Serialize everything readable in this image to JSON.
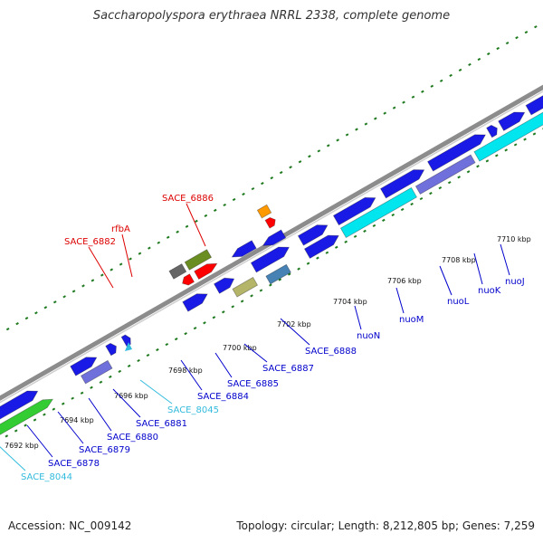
{
  "title": "Saccharopolyspora erythraea NRRL 2338, complete genome",
  "accession_text": "Accession: NC_009142",
  "summary_text": "Topology: circular; Length: 8,212,805 bp; Genes: 7,259",
  "colors": {
    "backbone": "#8c8c8c",
    "tick_dots": "#1f7a1f",
    "cds_forward": "#1a1ae6",
    "cds_reverse": "#1a1ae6",
    "rrna_like": "#00e5ee",
    "green_feature": "#33cc33",
    "purple_feature": "#7070dd",
    "olive_feature": "#6b8e23",
    "khaki_feature": "#b5b56a",
    "steel_feature": "#4682b4",
    "red_feature": "#ff0000",
    "orange_feature": "#ff9900",
    "gray_feature": "#666666",
    "label_blue": "#0000cc",
    "label_red": "#dd0000",
    "label_cyan": "#33bbdd"
  },
  "map": {
    "tick_labels": [
      "7692 kbp",
      "7694 kbp",
      "7696 kbp",
      "7698 kbp",
      "7700 kbp",
      "7702 kbp",
      "7704 kbp",
      "7706 kbp",
      "7708 kbp",
      "7710 kbp"
    ],
    "gene_labels": [
      {
        "text": "SACE_6886",
        "color_key": "label_red"
      },
      {
        "text": "rfbA",
        "color_key": "label_red"
      },
      {
        "text": "SACE_6882",
        "color_key": "label_red"
      },
      {
        "text": "SACE_8044",
        "color_key": "label_cyan"
      },
      {
        "text": "SACE_6878",
        "color_key": "label_blue"
      },
      {
        "text": "SACE_6879",
        "color_key": "label_blue"
      },
      {
        "text": "SACE_6880",
        "color_key": "label_blue"
      },
      {
        "text": "SACE_6881",
        "color_key": "label_blue"
      },
      {
        "text": "SACE_8045",
        "color_key": "label_cyan"
      },
      {
        "text": "SACE_6884",
        "color_key": "label_blue"
      },
      {
        "text": "SACE_6885",
        "color_key": "label_blue"
      },
      {
        "text": "SACE_6887",
        "color_key": "label_blue"
      },
      {
        "text": "SACE_6888",
        "color_key": "label_blue"
      },
      {
        "text": "nuoN",
        "color_key": "label_blue"
      },
      {
        "text": "nuoM",
        "color_key": "label_blue"
      },
      {
        "text": "nuoL",
        "color_key": "label_blue"
      },
      {
        "text": "nuoK",
        "color_key": "label_blue"
      },
      {
        "text": "nuoJ",
        "color_key": "label_blue"
      }
    ]
  }
}
